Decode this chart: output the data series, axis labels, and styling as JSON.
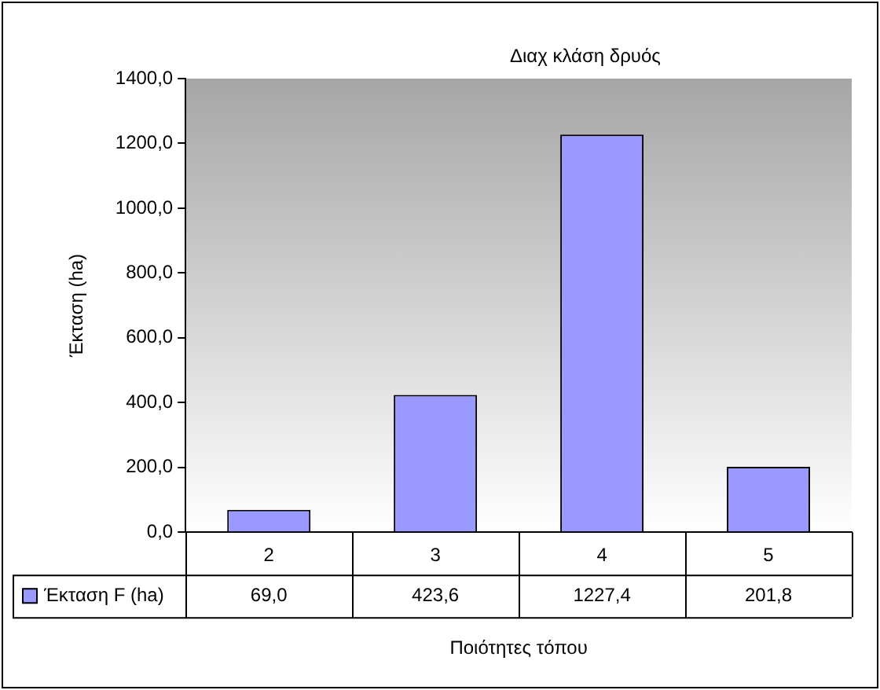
{
  "chart_data": {
    "type": "bar",
    "title": "Διαχ κλάση δρυός",
    "xlabel": "Ποιότητες τόπου",
    "ylabel": "Έκταση (ha)",
    "categories": [
      "2",
      "3",
      "4",
      "5"
    ],
    "series": [
      {
        "name": "Έκταση F (ha)",
        "color": "#9999ff",
        "values": [
          69.0,
          423.6,
          1227.4,
          201.8
        ],
        "value_labels": [
          "69,0",
          "423,6",
          "1227,4",
          "201,8"
        ]
      }
    ],
    "ylim": [
      0,
      1400
    ],
    "yticks": [
      {
        "value": 0,
        "label": "0,0"
      },
      {
        "value": 200,
        "label": "200,0"
      },
      {
        "value": 400,
        "label": "400,0"
      },
      {
        "value": 600,
        "label": "600,0"
      },
      {
        "value": 800,
        "label": "800,0"
      },
      {
        "value": 1000,
        "label": "1000,0"
      },
      {
        "value": 1200,
        "label": "1200,0"
      },
      {
        "value": 1400,
        "label": "1400,0"
      }
    ],
    "grid": false,
    "legend": "bottom"
  }
}
